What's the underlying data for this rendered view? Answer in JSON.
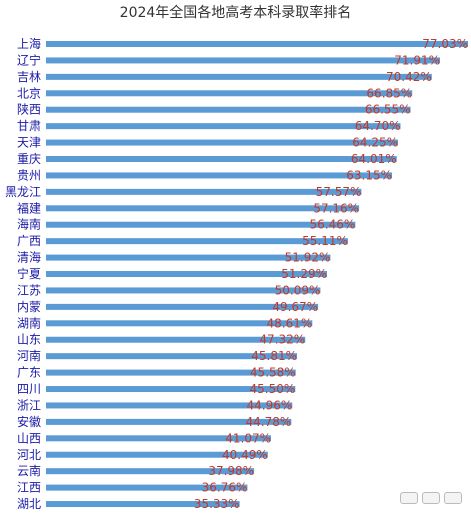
{
  "chart_data": {
    "type": "bar",
    "orientation": "horizontal",
    "title": "2024年全国各地高考本科录取率排名",
    "categories": [
      "上海",
      "辽宁",
      "吉林",
      "北京",
      "陕西",
      "甘肃",
      "天津",
      "重庆",
      "贵州",
      "黑龙江",
      "福建",
      "海南",
      "广西",
      "清海",
      "宁夏",
      "江苏",
      "内蒙",
      "湖南",
      "山东",
      "河南",
      "广东",
      "四川",
      "浙江",
      "安徽",
      "山西",
      "河北",
      "云南",
      "江西",
      "湖北"
    ],
    "values": [
      77.03,
      71.91,
      70.42,
      66.85,
      66.55,
      64.7,
      64.25,
      64.01,
      63.15,
      57.57,
      57.16,
      56.46,
      55.11,
      51.92,
      51.29,
      50.09,
      49.67,
      48.61,
      47.32,
      45.81,
      45.58,
      45.5,
      44.96,
      44.78,
      41.07,
      40.49,
      37.98,
      36.76,
      35.33
    ],
    "value_labels": [
      "77.03%",
      "71.91%",
      "70.42%",
      "66.85%",
      "66.55%",
      "64.70%",
      "64.25%",
      "64.01%",
      "63.15%",
      "57.57%",
      "57.16%",
      "56.46%",
      "55.11%",
      "51.92%",
      "51.29%",
      "50.09%",
      "49.67%",
      "48.61%",
      "47.32%",
      "45.81%",
      "45.58%",
      "45.50%",
      "44.96%",
      "44.78%",
      "41.07%",
      "40.49%",
      "37.98%",
      "36.76%",
      "35.33%"
    ],
    "xlim": [
      0,
      77.03
    ],
    "grid": false,
    "legend": "none",
    "colors": {
      "bar": "#5b9bd5",
      "category_label": "#1a1aa6",
      "value_label": "#c0392b"
    }
  }
}
